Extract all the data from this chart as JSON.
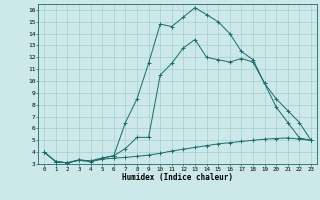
{
  "title": "",
  "xlabel": "Humidex (Indice chaleur)",
  "xlim": [
    -0.5,
    23.5
  ],
  "ylim": [
    3,
    16.5
  ],
  "xticks": [
    0,
    1,
    2,
    3,
    4,
    5,
    6,
    7,
    8,
    9,
    10,
    11,
    12,
    13,
    14,
    15,
    16,
    17,
    18,
    19,
    20,
    21,
    22,
    23
  ],
  "yticks": [
    3,
    4,
    5,
    6,
    7,
    8,
    9,
    10,
    11,
    12,
    13,
    14,
    15,
    16
  ],
  "bg_color": "#cce8e8",
  "line_color": "#1a6b6b",
  "series1": [
    [
      0,
      4
    ],
    [
      1,
      3.2
    ],
    [
      2,
      3.1
    ],
    [
      3,
      3.3
    ],
    [
      4,
      3.2
    ],
    [
      5,
      3.4
    ],
    [
      6,
      3.5
    ],
    [
      7,
      3.55
    ],
    [
      8,
      3.65
    ],
    [
      9,
      3.75
    ],
    [
      10,
      3.9
    ],
    [
      11,
      4.1
    ],
    [
      12,
      4.25
    ],
    [
      13,
      4.4
    ],
    [
      14,
      4.55
    ],
    [
      15,
      4.7
    ],
    [
      16,
      4.8
    ],
    [
      17,
      4.9
    ],
    [
      18,
      5.0
    ],
    [
      19,
      5.1
    ],
    [
      20,
      5.15
    ],
    [
      21,
      5.2
    ],
    [
      22,
      5.1
    ],
    [
      23,
      5.0
    ]
  ],
  "series2": [
    [
      0,
      4
    ],
    [
      1,
      3.2
    ],
    [
      2,
      3.1
    ],
    [
      3,
      3.35
    ],
    [
      4,
      3.25
    ],
    [
      5,
      3.5
    ],
    [
      6,
      3.7
    ],
    [
      7,
      6.5
    ],
    [
      8,
      8.5
    ],
    [
      9,
      11.5
    ],
    [
      10,
      14.8
    ],
    [
      11,
      14.6
    ],
    [
      12,
      15.4
    ],
    [
      13,
      16.2
    ],
    [
      14,
      15.6
    ],
    [
      15,
      15.0
    ],
    [
      16,
      14.0
    ],
    [
      17,
      12.5
    ],
    [
      18,
      11.8
    ],
    [
      19,
      9.8
    ],
    [
      20,
      8.5
    ],
    [
      21,
      7.5
    ],
    [
      22,
      6.5
    ],
    [
      23,
      5.0
    ]
  ],
  "series3": [
    [
      0,
      4
    ],
    [
      1,
      3.2
    ],
    [
      2,
      3.1
    ],
    [
      3,
      3.35
    ],
    [
      4,
      3.25
    ],
    [
      5,
      3.5
    ],
    [
      6,
      3.7
    ],
    [
      7,
      4.3
    ],
    [
      8,
      5.25
    ],
    [
      9,
      5.25
    ],
    [
      10,
      10.5
    ],
    [
      11,
      11.5
    ],
    [
      12,
      12.8
    ],
    [
      13,
      13.5
    ],
    [
      14,
      12.0
    ],
    [
      15,
      11.8
    ],
    [
      16,
      11.6
    ],
    [
      17,
      11.9
    ],
    [
      18,
      11.6
    ],
    [
      19,
      9.8
    ],
    [
      20,
      7.8
    ],
    [
      21,
      6.5
    ],
    [
      22,
      5.2
    ],
    [
      23,
      5.0
    ]
  ]
}
